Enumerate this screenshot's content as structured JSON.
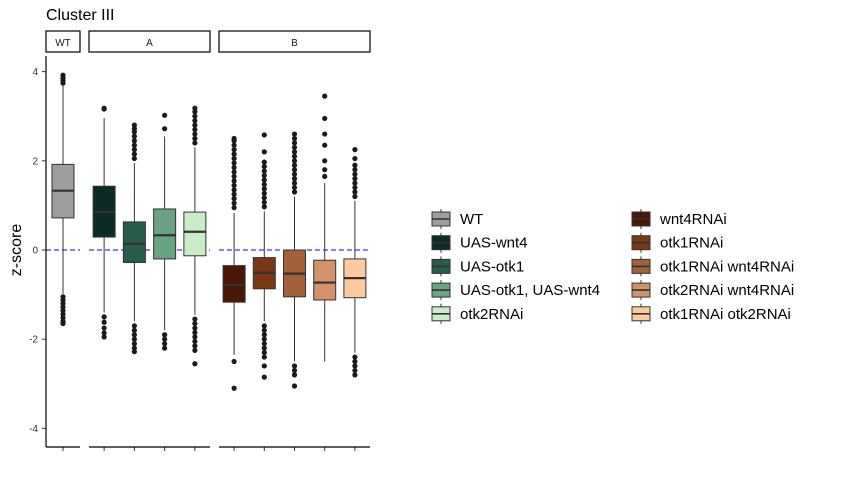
{
  "chart_data": {
    "type": "boxplot",
    "title": "Cluster III",
    "ylabel": "z-score",
    "xlabel": "",
    "ylim": [
      -4.4,
      4.4
    ],
    "yticks": [
      -4,
      -2,
      0,
      2,
      4
    ],
    "reference_line": {
      "y": 0,
      "color": "#0000ff",
      "style": "dashed"
    },
    "grid": false,
    "legend_position": "right",
    "facets": [
      {
        "label": "WT",
        "groups": [
          "WT"
        ]
      },
      {
        "label": "A",
        "groups": [
          "UAS-wnt4",
          "UAS-otk1",
          "UAS-otk1, UAS-wnt4",
          "otk2RNAi"
        ]
      },
      {
        "label": "B",
        "groups": [
          "wnt4RNAi",
          "otk1RNAi",
          "otk1RNAi wnt4RNAi",
          "otk2RNAi wnt4RNAi",
          "otk1RNAi otk2RNAi"
        ]
      }
    ],
    "series": [
      {
        "name": "WT",
        "color": "#9e9e9e",
        "q1": 0.72,
        "median": 1.33,
        "q3": 1.92,
        "whisker_low": -0.98,
        "whisker_high": 3.68,
        "outliers_low": [
          -1.05,
          -1.12,
          -1.2,
          -1.28,
          -1.36,
          -1.44,
          -1.52,
          -1.6,
          -1.65
        ],
        "outliers_high": [
          3.74,
          3.8,
          3.86,
          3.92
        ]
      },
      {
        "name": "UAS-wnt4",
        "color": "#0b2b25",
        "q1": 0.29,
        "median": 0.85,
        "q3": 1.43,
        "whisker_low": -1.4,
        "whisker_high": 2.96,
        "outliers_low": [
          -1.5,
          -1.62,
          -1.75,
          -1.86,
          -1.95
        ],
        "outliers_high": [
          3.16,
          3.18
        ]
      },
      {
        "name": "UAS-otk1",
        "color": "#275d4d",
        "q1": -0.28,
        "median": 0.14,
        "q3": 0.63,
        "whisker_low": -1.6,
        "whisker_high": 1.95,
        "outliers_low": [
          -1.7,
          -1.8,
          -1.9,
          -2.0,
          -2.1,
          -2.2,
          -2.28
        ],
        "outliers_high": [
          2.05,
          2.15,
          2.25,
          2.35,
          2.45,
          2.55,
          2.65,
          2.72,
          2.8
        ]
      },
      {
        "name": "UAS-otk1, UAS-wnt4",
        "color": "#69a383",
        "q1": -0.2,
        "median": 0.33,
        "q3": 0.92,
        "whisker_low": -1.8,
        "whisker_high": 2.55,
        "outliers_low": [
          -1.9,
          -2.0,
          -2.1,
          -2.2
        ],
        "outliers_high": [
          2.72,
          3.02
        ]
      },
      {
        "name": "otk2RNAi",
        "color": "#c8edc8",
        "q1": -0.13,
        "median": 0.41,
        "q3": 0.85,
        "whisker_low": -1.45,
        "whisker_high": 2.3,
        "outliers_low": [
          -1.55,
          -1.65,
          -1.75,
          -1.85,
          -1.95,
          -2.05,
          -2.15,
          -2.25,
          -2.55
        ],
        "outliers_high": [
          2.4,
          2.5,
          2.6,
          2.7,
          2.8,
          2.9,
          3.0,
          3.1,
          3.18
        ]
      },
      {
        "name": "wnt4RNAi",
        "color": "#4a1605",
        "q1": -1.17,
        "median": -0.78,
        "q3": -0.35,
        "whisker_low": -2.35,
        "whisker_high": 0.83,
        "outliers_low": [
          -2.5,
          -3.1
        ],
        "outliers_high": [
          0.95,
          1.05,
          1.15,
          1.25,
          1.35,
          1.45,
          1.55,
          1.65,
          1.75,
          1.85,
          1.95,
          2.05,
          2.15,
          2.25,
          2.35,
          2.45,
          2.5
        ]
      },
      {
        "name": "otk1RNAi",
        "color": "#7a3816",
        "q1": -0.87,
        "median": -0.51,
        "q3": -0.17,
        "whisker_low": -1.6,
        "whisker_high": 0.87,
        "outliers_low": [
          -1.7,
          -1.8,
          -1.9,
          -2.0,
          -2.1,
          -2.2,
          -2.3,
          -2.4,
          -2.6,
          -2.85
        ],
        "outliers_high": [
          0.97,
          1.07,
          1.17,
          1.27,
          1.37,
          1.47,
          1.57,
          1.67,
          1.77,
          1.87,
          1.97,
          2.2,
          2.58
        ]
      },
      {
        "name": "otk1RNAi wnt4RNAi",
        "color": "#a3603a",
        "q1": -1.05,
        "median": -0.53,
        "q3": 0.0,
        "whisker_low": -2.5,
        "whisker_high": 1.2,
        "outliers_low": [
          -2.6,
          -2.7,
          -2.8,
          -3.05
        ],
        "outliers_high": [
          1.3,
          1.4,
          1.5,
          1.6,
          1.7,
          1.8,
          1.9,
          2.0,
          2.1,
          2.2,
          2.3,
          2.4,
          2.5,
          2.6
        ]
      },
      {
        "name": "otk2RNAi wnt4RNAi",
        "color": "#d4926a",
        "q1": -1.12,
        "median": -0.73,
        "q3": -0.23,
        "whisker_low": -2.5,
        "whisker_high": 1.5,
        "outliers_low": [],
        "outliers_high": [
          1.65,
          1.8,
          2.0,
          2.35,
          2.6,
          2.95,
          3.45
        ]
      },
      {
        "name": "otk1RNAi otk2RNAi",
        "color": "#ffcb9e",
        "q1": -1.07,
        "median": -0.63,
        "q3": -0.2,
        "whisker_low": -2.3,
        "whisker_high": 1.1,
        "outliers_low": [
          -2.4,
          -2.5,
          -2.6,
          -2.7,
          -2.8
        ],
        "outliers_high": [
          1.2,
          1.3,
          1.4,
          1.5,
          1.6,
          1.7,
          1.8,
          1.9,
          2.05,
          2.25
        ]
      }
    ]
  }
}
